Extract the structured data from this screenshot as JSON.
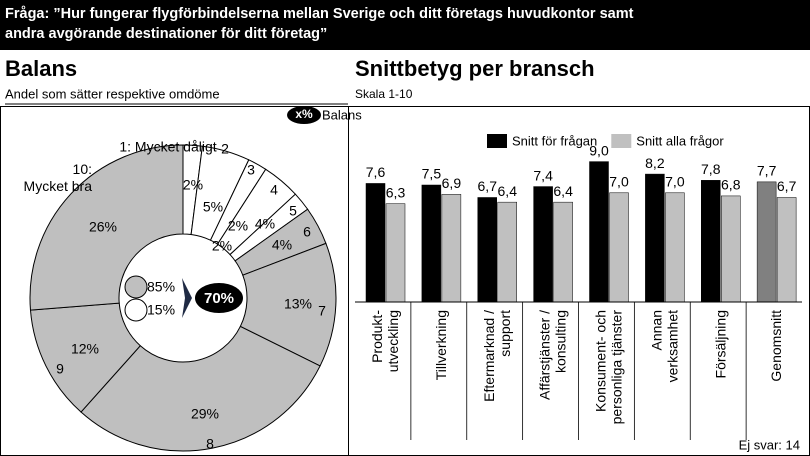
{
  "header": {
    "lines": [
      "Fråga: ”Hur fungerar flygförbindelserna mellan Sverige och ditt företags huvudkontor samt",
      "andra avgörande destinationer för ditt företag”"
    ]
  },
  "chart_data": [
    {
      "type": "pie",
      "title": "Balans",
      "subtitle": "Andel som sätter respektive omdöme",
      "badge": {
        "label": "x%",
        "text": "Balans"
      },
      "categories": [
        "1: Mycket dåligt",
        "2",
        "3",
        "4",
        "5",
        "6",
        "7",
        "8",
        "9",
        "10: Mycket bra"
      ],
      "values": [
        2,
        5,
        2,
        4,
        2,
        4,
        13,
        29,
        12,
        26
      ],
      "value_labels": [
        "2%",
        "5%",
        "2%",
        "4%",
        "2%",
        "4%",
        "13%",
        "29%",
        "12%",
        "26%"
      ],
      "colors": [
        "#ffffff",
        "#ffffff",
        "#ffffff",
        "#ffffff",
        "#ffffff",
        "#bfbfbf",
        "#bfbfbf",
        "#bfbfbf",
        "#bfbfbf",
        "#bfbfbf"
      ],
      "summary": {
        "values": [
          85,
          15,
          70
        ],
        "value_labels": [
          "85%",
          "15%",
          "70%"
        ],
        "colors": [
          "#bfbfbf",
          "#ffffff",
          "#000000"
        ]
      }
    },
    {
      "type": "bar",
      "title": "Snittbetyg per bransch",
      "subtitle": "Skala 1-10",
      "categories": [
        "Produkt-\nutveckling",
        "Tillverkning",
        "Eftermarknad /\nsupport",
        "Affärstjänster /\nkonsulting",
        "Konsument- och\npersonliga tjänster",
        "Annan\nverksamhet",
        "Försäljning",
        "Genomsnitt"
      ],
      "series": [
        {
          "name": "Snitt för frågan",
          "color": "#000000",
          "colors": [
            "#000000",
            "#000000",
            "#000000",
            "#000000",
            "#000000",
            "#000000",
            "#000000",
            "#808080"
          ],
          "values": [
            7.6,
            7.5,
            6.7,
            7.4,
            9.0,
            8.2,
            7.8,
            7.7
          ],
          "value_labels": [
            "7,6",
            "7,5",
            "6,7",
            "7,4",
            "9,0",
            "8,2",
            "7,8",
            "7,7"
          ]
        },
        {
          "name": "Snitt alla frågor",
          "color": "#c0c0c0",
          "values": [
            6.3,
            6.9,
            6.4,
            6.4,
            7.0,
            7.0,
            6.8,
            6.7
          ],
          "value_labels": [
            "6,3",
            "6,9",
            "6,4",
            "6,4",
            "7,0",
            "7,0",
            "6,8",
            "6,7"
          ]
        }
      ],
      "ylim": [
        0,
        10
      ],
      "legend": "top-right",
      "footnote": "Ej svar: 14"
    }
  ]
}
